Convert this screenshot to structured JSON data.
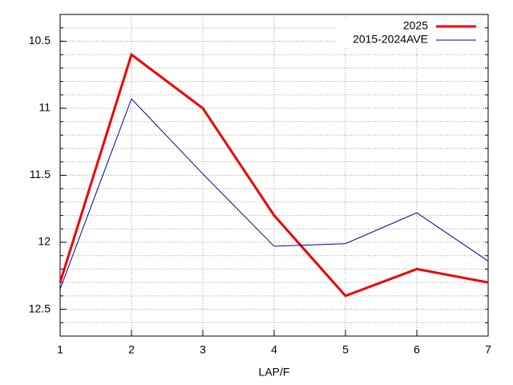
{
  "chart_data": {
    "type": "line",
    "xlabel": "LAP/F",
    "x": [
      1,
      2,
      3,
      4,
      5,
      6,
      7
    ],
    "series": [
      {
        "name": "2025",
        "color": "#ee0000",
        "width": 3,
        "values": [
          12.3,
          10.6,
          11.0,
          11.8,
          12.4,
          12.2,
          12.3
        ]
      },
      {
        "name": "2015-2024AVE",
        "color": "#0000a0",
        "width": 1,
        "values": [
          12.35,
          10.93,
          11.49,
          12.03,
          12.01,
          11.78,
          12.14
        ]
      }
    ],
    "xlim": [
      1,
      7
    ],
    "xticks": [
      1,
      2,
      3,
      4,
      5,
      6,
      7
    ],
    "ylim": [
      10.3,
      12.7
    ],
    "yticks": [
      10.5,
      11,
      11.5,
      12,
      12.5
    ],
    "y_reversed": true,
    "grid": true,
    "y_minor_divisions": 5,
    "legend": "top-right"
  }
}
